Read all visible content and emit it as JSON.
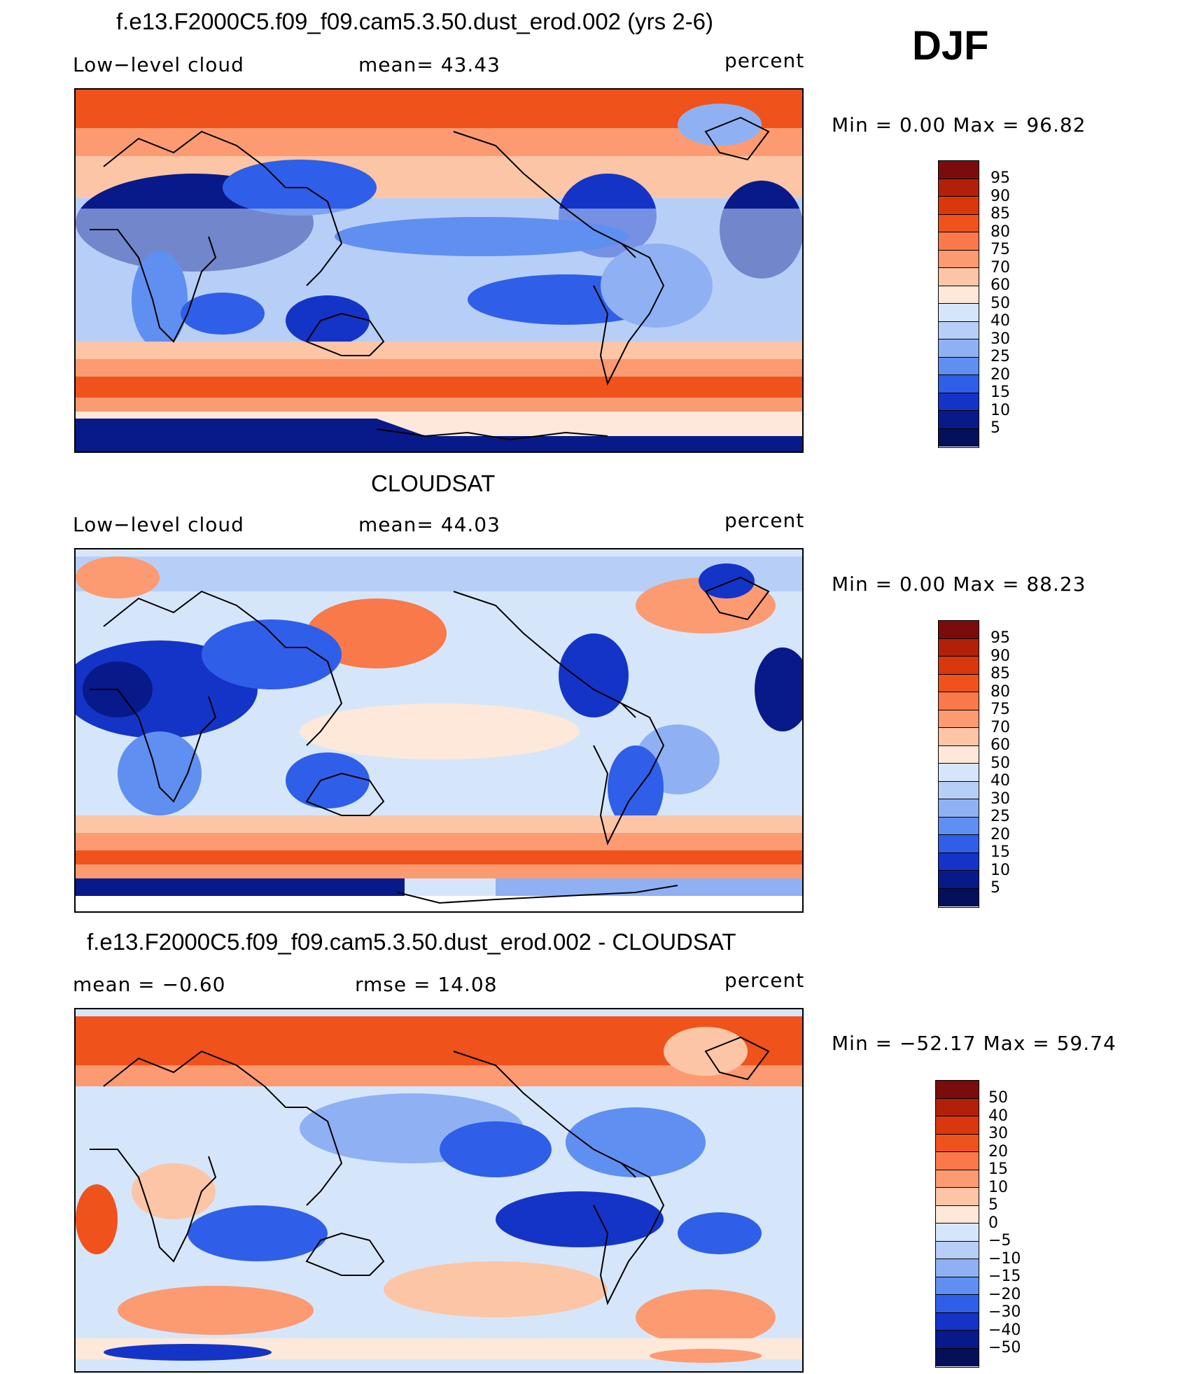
{
  "season": "DJF",
  "units": "percent",
  "panels": [
    {
      "title": "f.e13.F2000C5.f09_f09.cam5.3.50.dust_erod.002 (yrs 2-6)",
      "left_label": "Low−level cloud",
      "mid_label": "mean=   43.43",
      "right_label": "percent",
      "minmax": "Min =     0.00  Max =    96.82",
      "colorbar_labels": [
        "95",
        "90",
        "85",
        "80",
        "75",
        "70",
        "60",
        "50",
        "40",
        "30",
        "25",
        "20",
        "15",
        "10",
        "5"
      ]
    },
    {
      "title": "CLOUDSAT",
      "left_label": "Low−level cloud",
      "mid_label": "mean=   44.03",
      "right_label": "percent",
      "minmax": "Min =     0.00  Max =    88.23",
      "colorbar_labels": [
        "95",
        "90",
        "85",
        "80",
        "75",
        "70",
        "60",
        "50",
        "40",
        "30",
        "25",
        "20",
        "15",
        "10",
        "5"
      ]
    },
    {
      "title": "f.e13.F2000C5.f09_f09.cam5.3.50.dust_erod.002 - CLOUDSAT",
      "left_label": "mean  =    −0.60",
      "mid_label": "rmse  =    14.08",
      "right_label": "percent",
      "minmax": "Min  = −52.17  Max  =    59.74",
      "colorbar_labels": [
        "50",
        "40",
        "30",
        "20",
        "15",
        "10",
        "5",
        "0",
        "−5",
        "−10",
        "−15",
        "−20",
        "−30",
        "−40",
        "−50"
      ]
    }
  ],
  "colors": {
    "abs_scale": [
      "#7a0c0c",
      "#b3200a",
      "#d9380c",
      "#f0521c",
      "#f9794a",
      "#fc9a72",
      "#fcc5a6",
      "#fde8d9",
      "#d6e6fa",
      "#b7cff7",
      "#8fb1f3",
      "#5f8ff0",
      "#2f5fe8",
      "#1434c8",
      "#081a8a"
    ],
    "diff_scale": [
      "#7a0c0c",
      "#b3200a",
      "#d9380c",
      "#f0521c",
      "#f9794a",
      "#fc9a72",
      "#fcc5a6",
      "#fde8d9",
      "#d6e6fa",
      "#b7cff7",
      "#8fb1f3",
      "#5f8ff0",
      "#2f5fe8",
      "#1434c8",
      "#081a8a"
    ]
  }
}
